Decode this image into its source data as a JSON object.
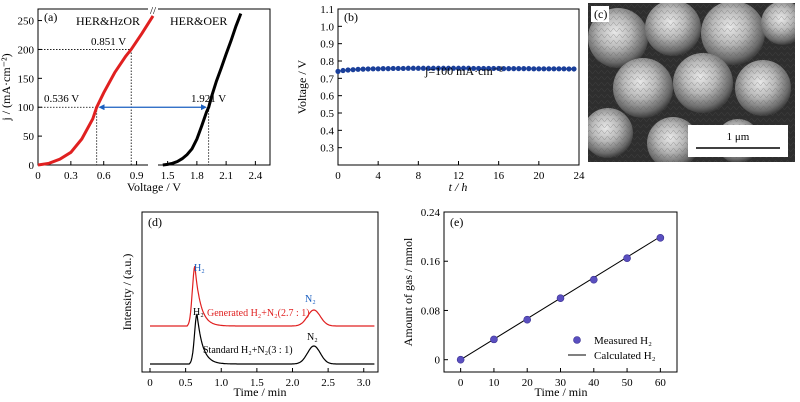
{
  "chart_data": [
    {
      "panel": "(a)",
      "type": "line",
      "xlabel": "Voltage / V",
      "ylabel": "j / (mA·cm⁻²)",
      "xticks": [
        "0",
        "0.3",
        "0.6",
        "0.9",
        "1.5",
        "1.8",
        "2.1",
        "2.4"
      ],
      "yticks": [
        "0",
        "50",
        "100",
        "150",
        "200",
        "250"
      ],
      "xbreak": "//",
      "ylim": [
        0,
        270
      ],
      "series": [
        {
          "name": "HER&HzOR",
          "color": "#e02020",
          "x": [
            0.0,
            0.1,
            0.2,
            0.3,
            0.4,
            0.5,
            0.536,
            0.6,
            0.7,
            0.8,
            0.851,
            0.95,
            1.05
          ],
          "y": [
            0,
            3,
            10,
            22,
            45,
            80,
            100,
            125,
            160,
            188,
            200,
            228,
            258
          ]
        },
        {
          "name": "HER&OER",
          "color": "#000000",
          "x": [
            1.45,
            1.5,
            1.55,
            1.6,
            1.65,
            1.7,
            1.75,
            1.8,
            1.85,
            1.9,
            1.921,
            1.95,
            2.0,
            2.05,
            2.1,
            2.15,
            2.2,
            2.25
          ],
          "y": [
            0,
            1,
            3,
            6,
            11,
            18,
            28,
            45,
            68,
            92,
            100,
            118,
            145,
            168,
            192,
            215,
            240,
            262
          ]
        }
      ],
      "annotations": [
        "0.851 V",
        "0.536 V",
        "1.921 V"
      ]
    },
    {
      "panel": "(b)",
      "type": "scatter",
      "xlabel": "t / h",
      "ylabel": "Voltage / V",
      "xlim": [
        0,
        24
      ],
      "ylim": [
        0.2,
        1.1
      ],
      "xticks": [
        "0",
        "4",
        "8",
        "12",
        "16",
        "20",
        "24"
      ],
      "yticks": [
        "0.3",
        "0.4",
        "0.5",
        "0.6",
        "0.7",
        "0.8",
        "0.9",
        "1.0",
        "1.1"
      ],
      "annotation": "j=100 mA·cm⁻²",
      "color": "#1a3f9a",
      "x": [
        0,
        0.5,
        1,
        1.5,
        2,
        2.5,
        3,
        3.5,
        4,
        4.5,
        5,
        5.5,
        6,
        6.5,
        7,
        7.5,
        8,
        8.5,
        9,
        9.5,
        10,
        10.5,
        11,
        11.5,
        12,
        12.5,
        13,
        13.5,
        14,
        14.5,
        15,
        15.5,
        16,
        16.5,
        17,
        17.5,
        18,
        18.5,
        19,
        19.5,
        20,
        20.5,
        21,
        21.5,
        22,
        22.5,
        23,
        23.5
      ],
      "y": [
        0.74,
        0.745,
        0.748,
        0.75,
        0.752,
        0.753,
        0.754,
        0.755,
        0.755,
        0.756,
        0.756,
        0.757,
        0.757,
        0.757,
        0.758,
        0.758,
        0.758,
        0.758,
        0.758,
        0.758,
        0.758,
        0.758,
        0.758,
        0.758,
        0.758,
        0.758,
        0.758,
        0.757,
        0.757,
        0.757,
        0.757,
        0.757,
        0.757,
        0.756,
        0.756,
        0.756,
        0.756,
        0.756,
        0.756,
        0.755,
        0.755,
        0.755,
        0.755,
        0.755,
        0.755,
        0.755,
        0.754,
        0.754
      ]
    },
    {
      "panel": "(c)",
      "type": "image",
      "scale_bar": "1 μm"
    },
    {
      "panel": "(d)",
      "type": "line",
      "xlabel": "Time / min",
      "ylabel": "Intensity / (a.u.)",
      "xlim": [
        0,
        3.2
      ],
      "xticks": [
        "0",
        "0.5",
        "1.0",
        "1.5",
        "2.0",
        "2.5",
        "3.0"
      ],
      "series": [
        {
          "name": "Generated H₂+N₂(2.7 : 1)",
          "color": "#e02020",
          "h2_peak_min": 0.63,
          "n2_peak_min": 2.3
        },
        {
          "name": "Standard H₂+N₂(3 : 1)",
          "color": "#000000",
          "h2_peak_min": 0.66,
          "n2_peak_min": 2.3
        }
      ],
      "peak_labels": {
        "h2_top": "H₂",
        "n2_top": "N₂",
        "h2_bottom": "H₂",
        "n2_bottom": "N₂"
      }
    },
    {
      "panel": "(e)",
      "type": "scatter",
      "xlabel": "Time / min",
      "ylabel": "Amount of gas / mmol",
      "xlim": [
        -5,
        65
      ],
      "ylim": [
        -0.02,
        0.24
      ],
      "xticks": [
        "0",
        "10",
        "20",
        "30",
        "40",
        "50",
        "60"
      ],
      "yticks": [
        "0",
        "0.08",
        "0.16",
        "0.24"
      ],
      "series": [
        {
          "name": "Measured H₂",
          "color": "#5a4fc0",
          "x": [
            0,
            10,
            20,
            30,
            40,
            50,
            60
          ],
          "y": [
            0,
            0.033,
            0.065,
            0.1,
            0.13,
            0.165,
            0.198
          ]
        },
        {
          "name": "Calculated H₂",
          "color": "#000000",
          "x": [
            0,
            60
          ],
          "y": [
            0,
            0.2
          ]
        }
      ]
    }
  ]
}
